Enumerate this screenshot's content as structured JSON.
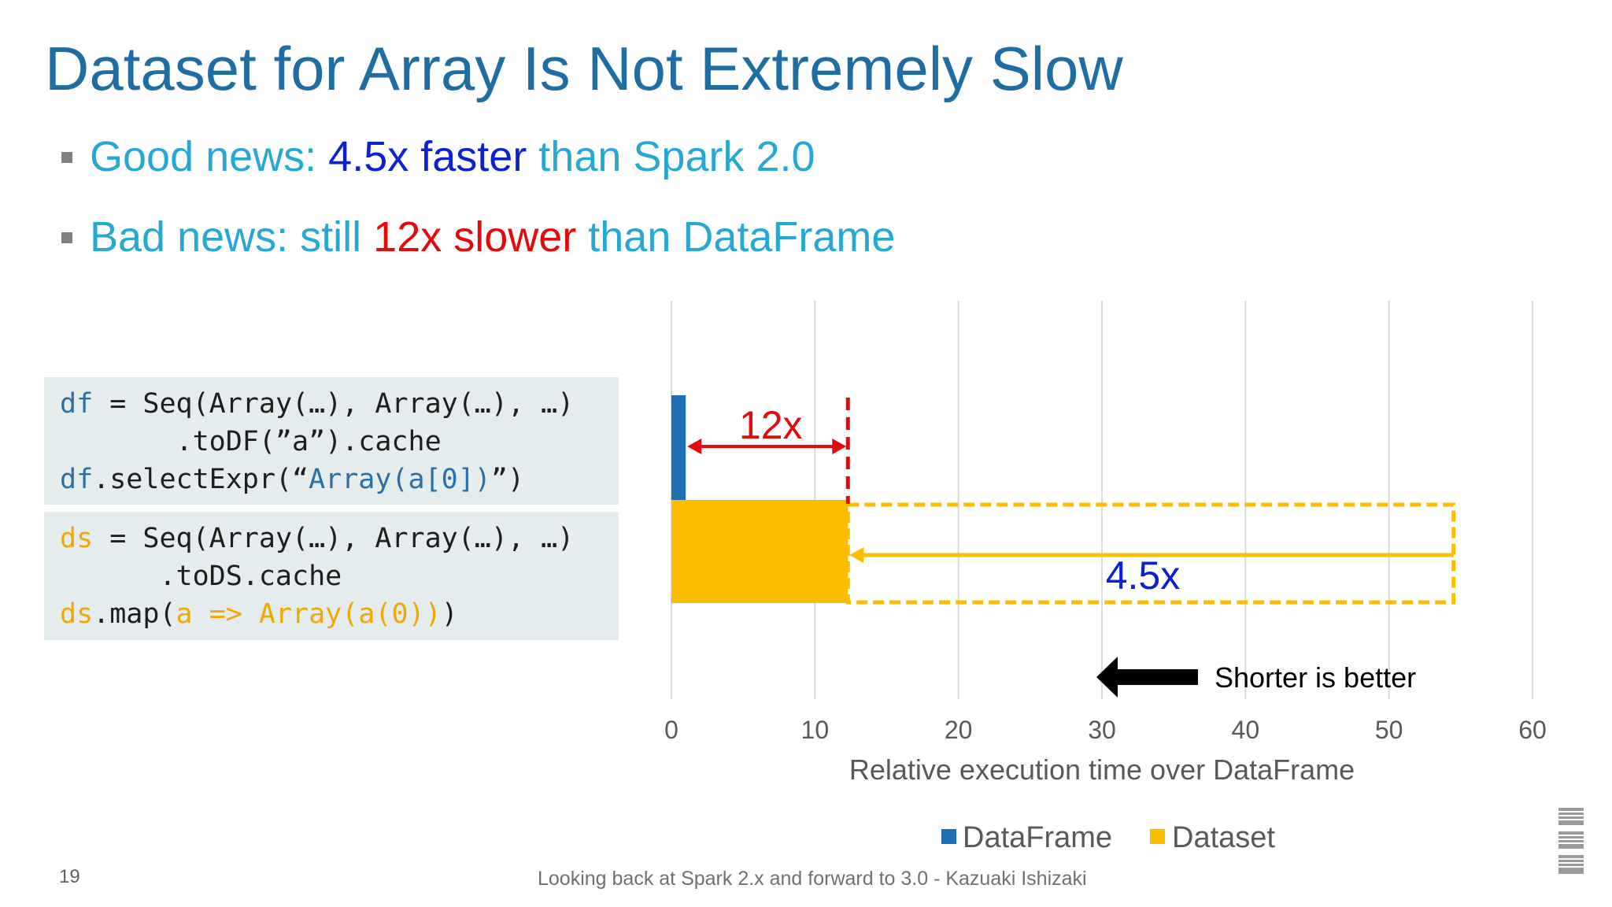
{
  "slide": {
    "title": "Dataset for Array Is Not Extremely Slow",
    "bullets": [
      {
        "pre": "Good news: ",
        "highlight": "4.5x faster",
        "post": " than Spark 2.0"
      },
      {
        "pre": "Bad news: still ",
        "highlight": "12x slower",
        "post": " than DataFrame"
      }
    ],
    "page_number": "19",
    "footer": "Looking back at Spark 2.x and forward to 3.0 - Kazuaki Ishizaki",
    "logo_text": "IBM"
  },
  "code_df": {
    "l1_var": "df",
    "l1_rest": " = Seq(Array(…), Array(…), …)",
    "l2": "       .toDF(”a”).cache",
    "l3_var": "df",
    "l3_mid": ".selectExpr(“",
    "l3_str": "Array(a[0])",
    "l3_end": "”)"
  },
  "code_ds": {
    "l1_var": "ds",
    "l1_rest": " = Seq(Array(…), Array(…), …)",
    "l2": "      .toDS.cache",
    "l3_var": "ds",
    "l3_mid": ".map(",
    "l3_lambda": "a => Array(a(0))",
    "l3_end": ")"
  },
  "chart_data": {
    "type": "bar",
    "orientation": "horizontal",
    "categories": [
      "",
      ""
    ],
    "series": [
      {
        "name": "DataFrame",
        "values": [
          1,
          null
        ],
        "color": "#1f6fb5"
      },
      {
        "name": "Dataset",
        "values": [
          null,
          12.3
        ],
        "color": "#fbbd00"
      }
    ],
    "previous_dataset_value": 54.5,
    "xlabel": "Relative execution time over DataFrame",
    "xlim": [
      0,
      60
    ],
    "xticks": [
      0,
      10,
      20,
      30,
      40,
      50,
      60
    ],
    "grid": true,
    "legend_position": "bottom",
    "annotations": {
      "slower_label": "12x",
      "faster_label": "4.5x",
      "better_label": "Shorter is better"
    },
    "colors": {
      "dataframe": "#1f6fb5",
      "dataset": "#fbbd00",
      "red": "#e30a0a",
      "blue_text": "#0b22d0"
    }
  }
}
